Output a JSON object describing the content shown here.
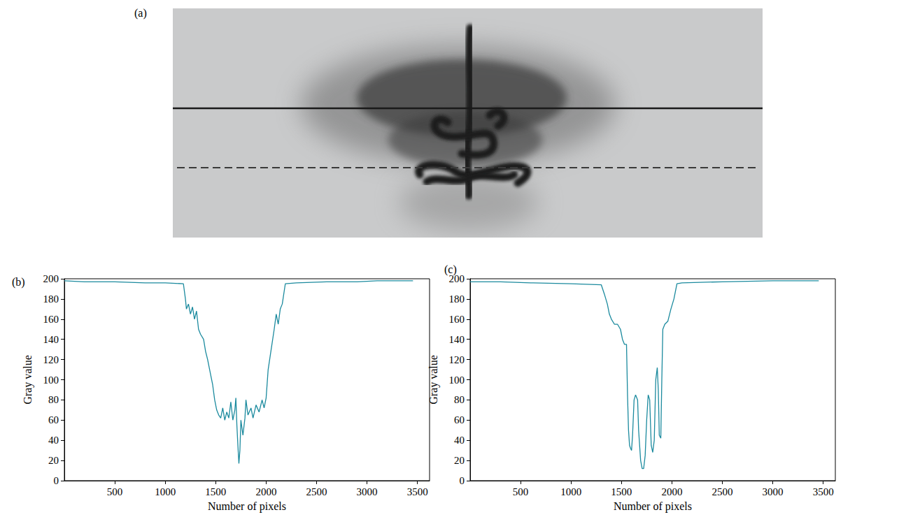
{
  "image": {
    "label": "(a)"
  },
  "chart_data": [
    {
      "type": "line",
      "title": "(b)",
      "xlabel": "Number of pixels",
      "ylabel": "Gray value",
      "x": [
        0,
        200,
        500,
        800,
        1000,
        1180,
        1200,
        1210,
        1230,
        1250,
        1270,
        1290,
        1310,
        1330,
        1350,
        1380,
        1400,
        1420,
        1450,
        1470,
        1490,
        1510,
        1530,
        1550,
        1570,
        1590,
        1610,
        1630,
        1650,
        1670,
        1690,
        1700,
        1710,
        1720,
        1730,
        1740,
        1750,
        1770,
        1790,
        1800,
        1820,
        1850,
        1870,
        1900,
        1930,
        1960,
        1980,
        2000,
        2020,
        2050,
        2080,
        2100,
        2120,
        2140,
        2160,
        2190,
        2300,
        2600,
        2900,
        3100,
        3300,
        3456
      ],
      "values": [
        198,
        197,
        197,
        196,
        196,
        195,
        180,
        170,
        175,
        165,
        172,
        160,
        168,
        150,
        145,
        140,
        128,
        120,
        105,
        95,
        80,
        70,
        65,
        62,
        72,
        60,
        68,
        62,
        78,
        60,
        70,
        82,
        55,
        35,
        17,
        30,
        60,
        45,
        62,
        80,
        65,
        72,
        62,
        75,
        68,
        80,
        72,
        82,
        110,
        130,
        150,
        165,
        155,
        170,
        175,
        195,
        196,
        197,
        197,
        198,
        198,
        198
      ],
      "color": "#1b8a9e",
      "xlim": [
        0,
        3620
      ],
      "xticks": [
        500,
        1000,
        1500,
        2000,
        2500,
        3000,
        3500
      ],
      "ylim": [
        0,
        200
      ],
      "yticks": [
        0,
        20,
        40,
        60,
        80,
        100,
        120,
        140,
        160,
        180,
        200
      ],
      "grid": false
    },
    {
      "type": "line",
      "title": "(c)",
      "xlabel": "Number of pixels",
      "ylabel": "Gray value",
      "x": [
        0,
        300,
        600,
        1000,
        1300,
        1330,
        1360,
        1380,
        1400,
        1430,
        1460,
        1490,
        1510,
        1530,
        1550,
        1560,
        1570,
        1580,
        1590,
        1600,
        1610,
        1625,
        1640,
        1660,
        1670,
        1690,
        1705,
        1720,
        1735,
        1750,
        1765,
        1780,
        1795,
        1810,
        1825,
        1840,
        1855,
        1865,
        1875,
        1890,
        1900,
        1910,
        1930,
        1960,
        1990,
        2020,
        2050,
        2100,
        2500,
        3000,
        3456
      ],
      "values": [
        197,
        197,
        196,
        195,
        194,
        185,
        175,
        165,
        160,
        155,
        155,
        150,
        140,
        135,
        135,
        85,
        50,
        35,
        32,
        30,
        45,
        80,
        85,
        80,
        50,
        20,
        12,
        12,
        25,
        60,
        85,
        80,
        35,
        28,
        40,
        100,
        112,
        90,
        45,
        42,
        100,
        150,
        155,
        158,
        170,
        180,
        195,
        196,
        197,
        198,
        198
      ],
      "color": "#1b8a9e",
      "xlim": [
        0,
        3620
      ],
      "xticks": [
        500,
        1000,
        1500,
        2000,
        2500,
        3000,
        3500
      ],
      "ylim": [
        0,
        200
      ],
      "yticks": [
        0,
        20,
        40,
        60,
        80,
        100,
        120,
        140,
        160,
        180,
        200
      ],
      "grid": false
    }
  ]
}
